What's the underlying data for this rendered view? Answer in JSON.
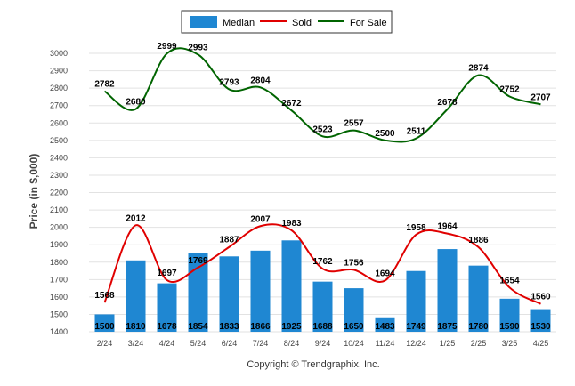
{
  "chart_data": {
    "type": "bar",
    "ylabel": "Price (in $,000)",
    "ylim": [
      1400,
      3000
    ],
    "ytick_step": 100,
    "grid": true,
    "legend_position": "top-center",
    "categories": [
      "2/24",
      "3/24",
      "4/24",
      "5/24",
      "6/24",
      "7/24",
      "8/24",
      "9/24",
      "10/24",
      "11/24",
      "12/24",
      "1/25",
      "2/25",
      "3/25",
      "4/25"
    ],
    "series": [
      {
        "name": "Median",
        "kind": "bar",
        "color": "#1f87d2",
        "values": [
          1500,
          1810,
          1678,
          1854,
          1833,
          1866,
          1925,
          1688,
          1650,
          1483,
          1749,
          1875,
          1780,
          1590,
          1530
        ]
      },
      {
        "name": "Sold",
        "kind": "line",
        "color": "#e00000",
        "values": [
          1568,
          2012,
          1697,
          1769,
          1887,
          2007,
          1983,
          1762,
          1756,
          1694,
          1958,
          1964,
          1886,
          1654,
          1560
        ]
      },
      {
        "name": "For Sale",
        "kind": "line",
        "color": "#006400",
        "values": [
          2782,
          2680,
          2999,
          2993,
          2793,
          2804,
          2672,
          2523,
          2557,
          2500,
          2511,
          2678,
          2874,
          2752,
          2707
        ]
      }
    ]
  },
  "copyright": "Copyright © Trendgraphix, Inc."
}
